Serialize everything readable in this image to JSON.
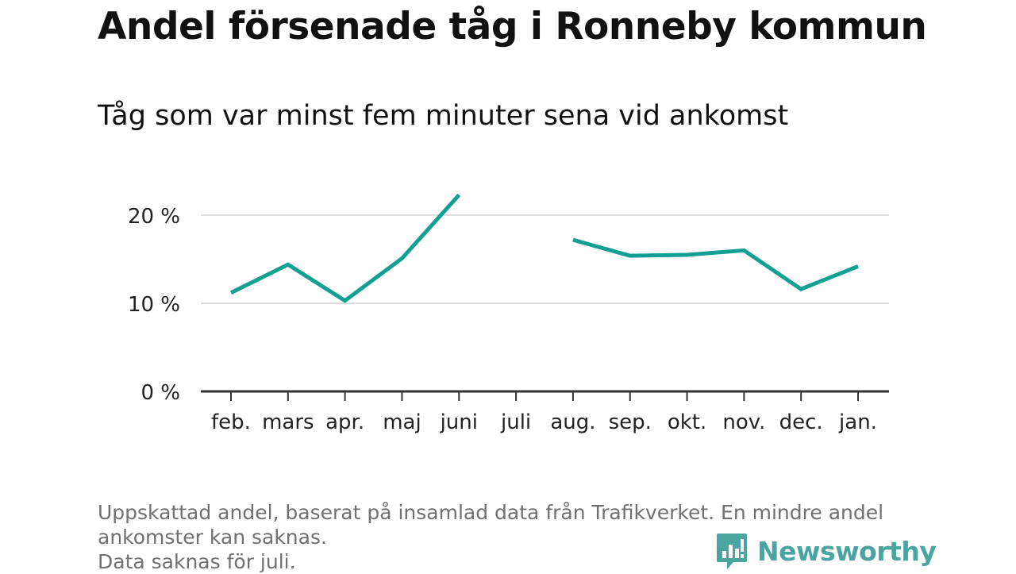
{
  "chart_data": {
    "type": "line",
    "title": "Andel försenade tåg i Ronneby kommun",
    "subtitle": "Tåg som var minst fem minuter sena vid ankomst",
    "categories": [
      "feb.",
      "mars",
      "apr.",
      "maj",
      "juni",
      "juli",
      "aug.",
      "sep.",
      "okt.",
      "nov.",
      "dec.",
      "jan."
    ],
    "series": [
      {
        "values": [
          11.2,
          14.4,
          10.3,
          15.1,
          22.3,
          null,
          17.2,
          15.4,
          15.5,
          16.0,
          11.6,
          14.2
        ]
      }
    ],
    "ylim": [
      0,
      20
    ],
    "yticks": [
      0,
      10,
      20
    ],
    "ytick_labels": [
      "0 %",
      "10 %",
      "20 %"
    ],
    "grid": true,
    "line_color": "#13a093"
  },
  "footnote": {
    "line1": "Uppskattad andel, baserat på insamlad data från Trafikverket. En mindre andel",
    "line2": "ankomster kan saknas.",
    "line3": "Data saknas för juli."
  },
  "brand": {
    "name": "Newsworthy",
    "icon": "bar-chart-speech-bubble-icon",
    "color": "#4aa5a0"
  }
}
